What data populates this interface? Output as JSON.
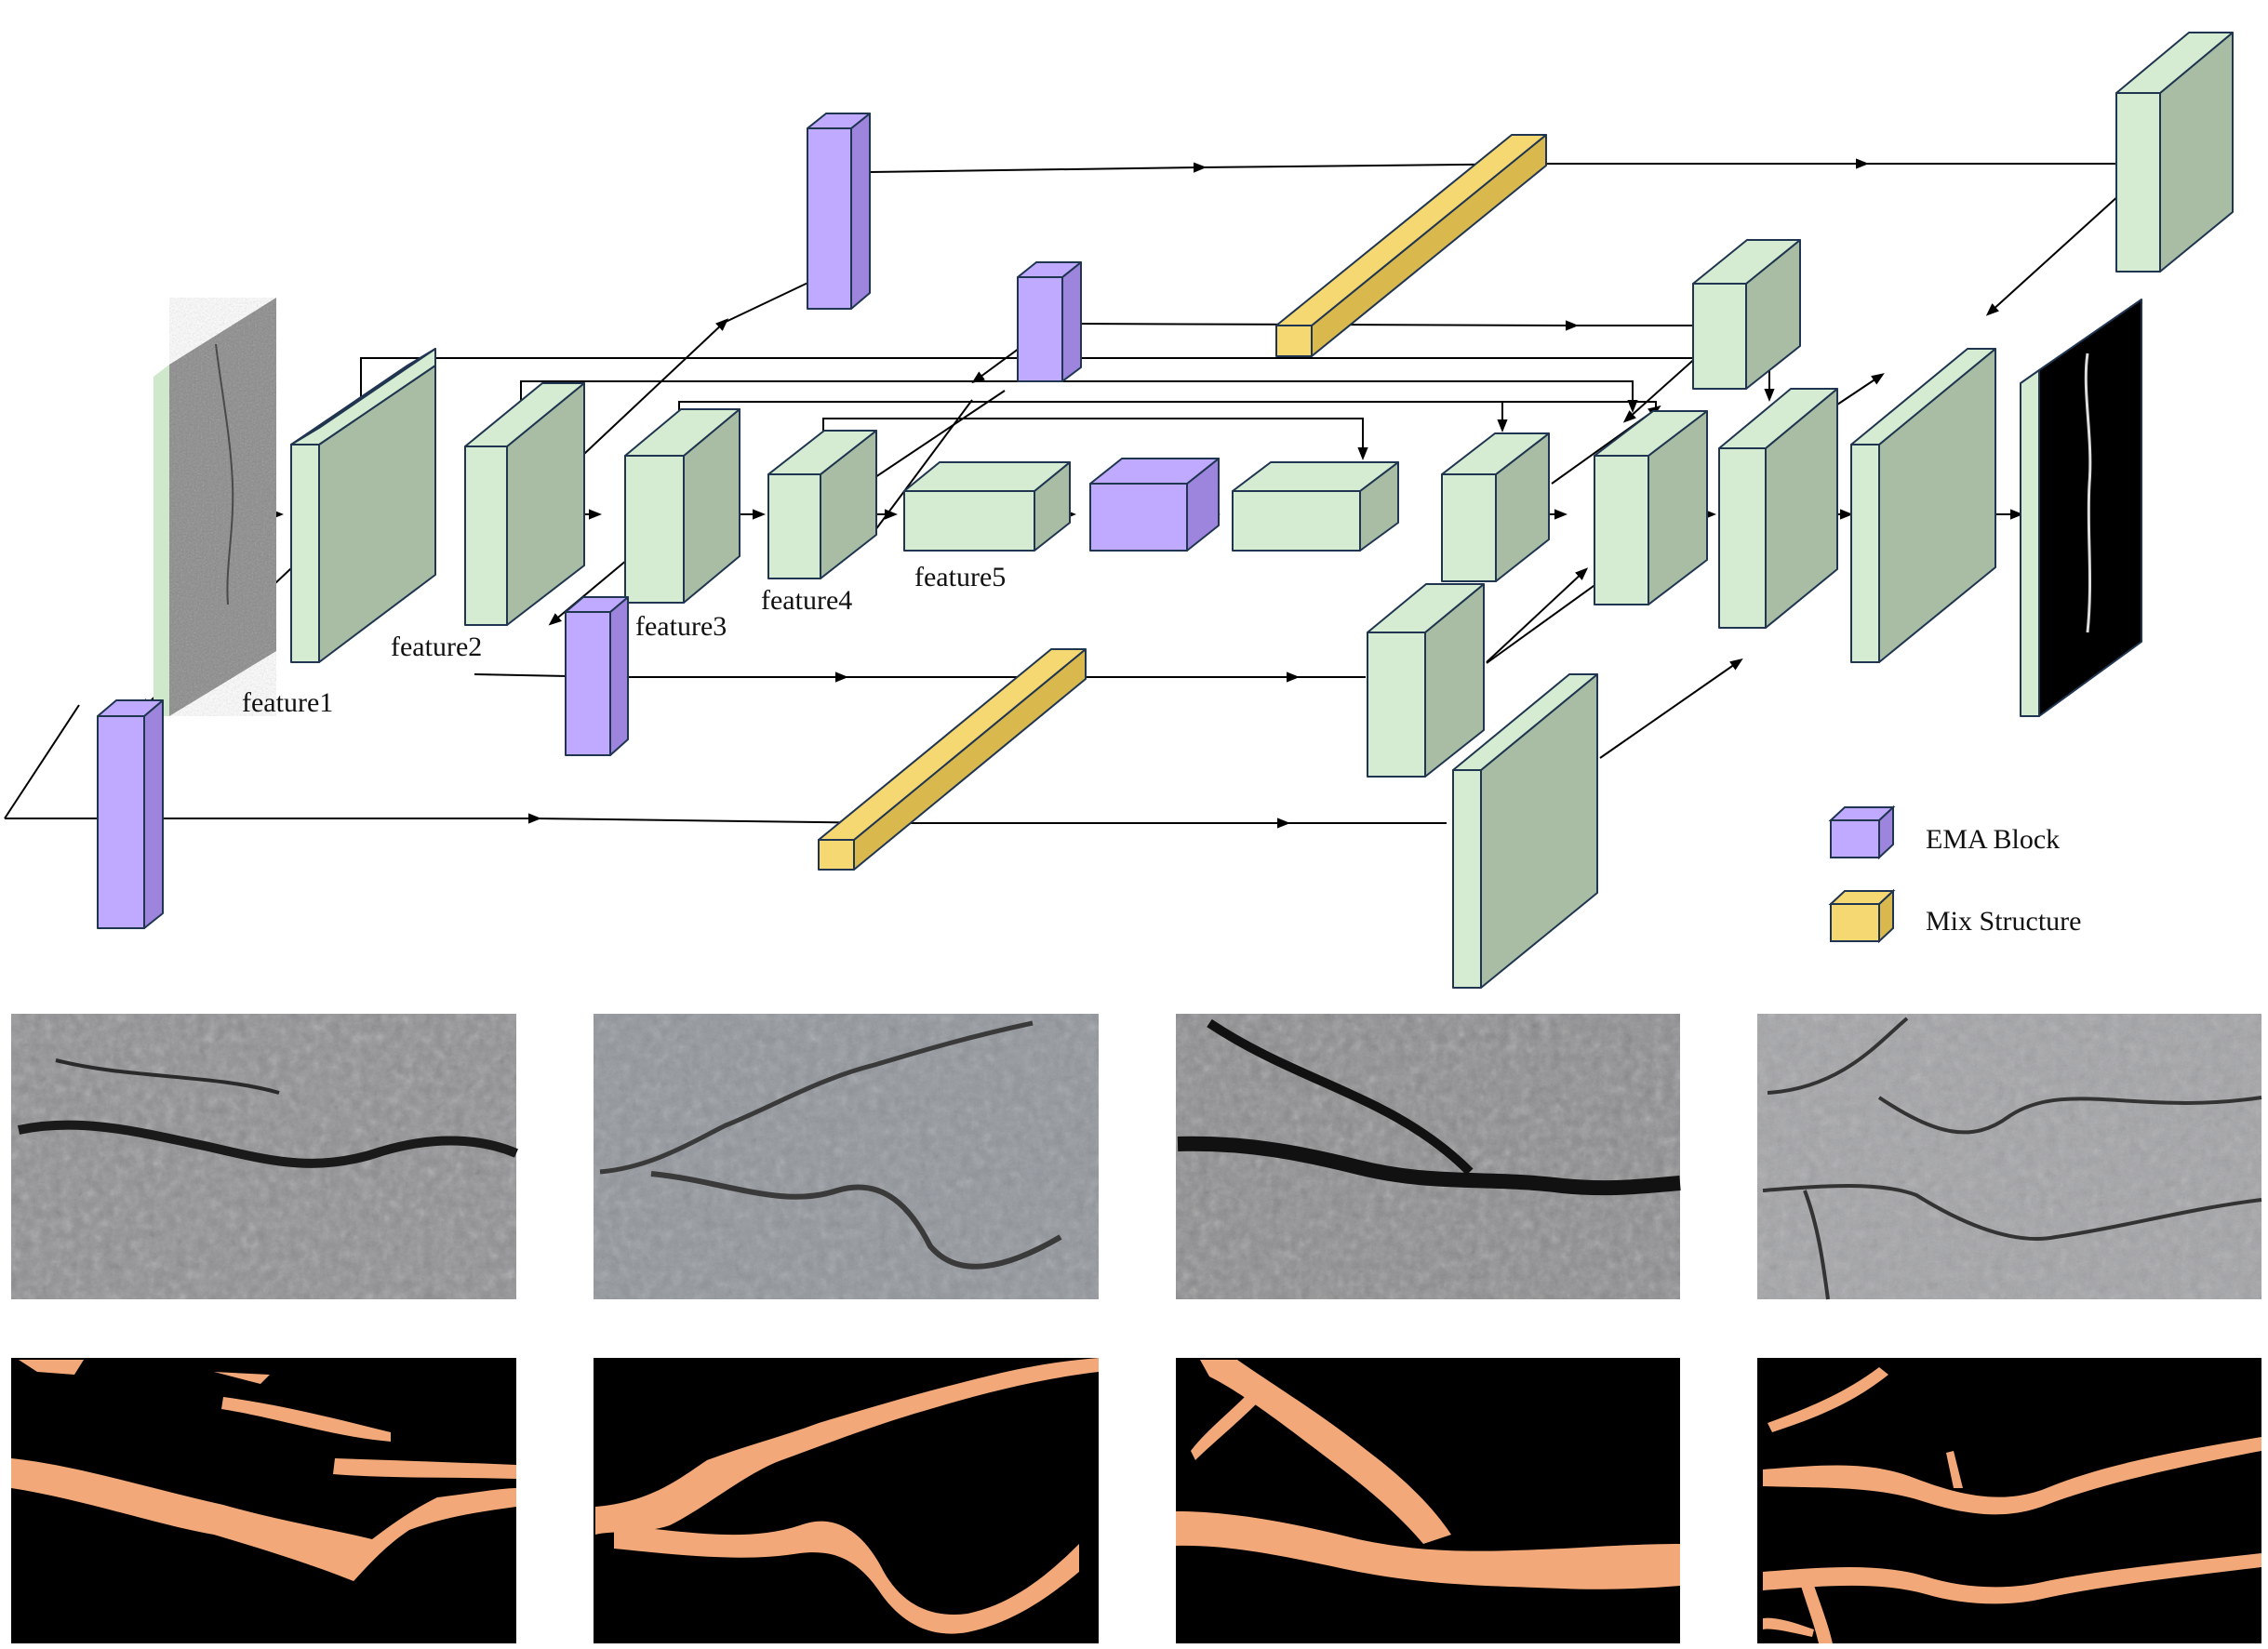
{
  "labels": {
    "feature1": "feature1",
    "feature2": "feature2",
    "feature3": "feature3",
    "feature4": "feature4",
    "feature5": "feature5"
  },
  "legend": [
    {
      "label": "EMA Block",
      "color": "#c0aaff",
      "icon": "ema-block-cube-icon"
    },
    {
      "label": "Mix Structure",
      "color": "#f5d872",
      "icon": "mix-structure-cube-icon"
    }
  ],
  "colors": {
    "feature_map": "#d6ecd2",
    "feature_map_side": "#a8bda4",
    "ema_block": "#c0aaff",
    "mix_structure": "#f5d872",
    "crack_mask": "#f2a878",
    "mask_background": "#000000",
    "outline": "#1f3550"
  },
  "examples": {
    "input_images": [
      "pavement-crack-photo-1",
      "pavement-crack-photo-2",
      "pavement-crack-photo-3",
      "pavement-crack-photo-4"
    ],
    "ground_truth_masks": [
      "crack-mask-1",
      "crack-mask-2",
      "crack-mask-3",
      "crack-mask-4"
    ]
  }
}
